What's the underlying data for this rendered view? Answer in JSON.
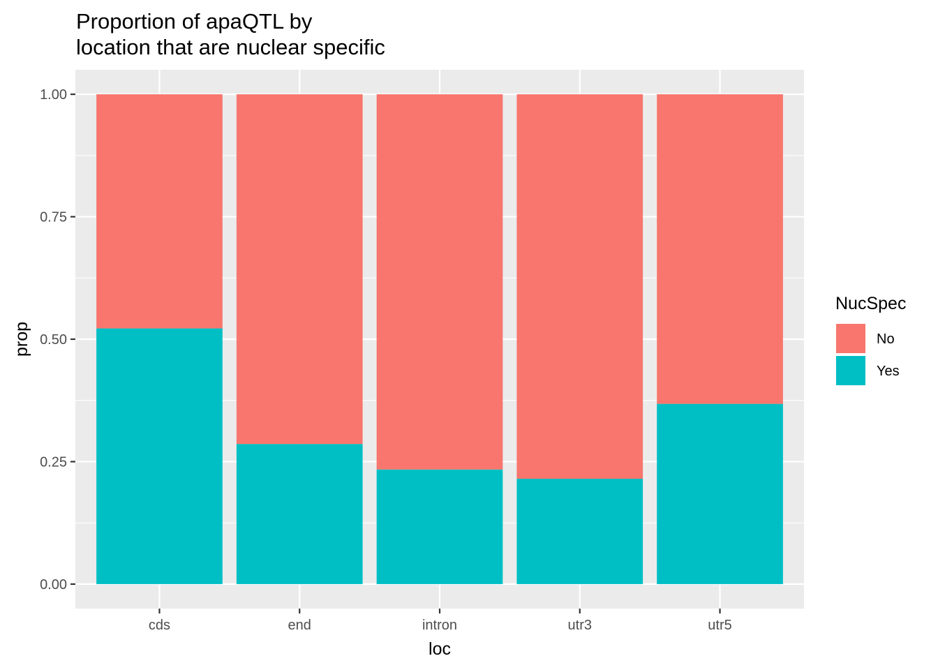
{
  "chart_data": {
    "type": "bar",
    "stacked": true,
    "title_lines": [
      "Proportion of apaQTL by",
      "location that are nuclear specific"
    ],
    "xlabel": "loc",
    "ylabel": "prop",
    "categories": [
      "cds",
      "end",
      "intron",
      "utr3",
      "utr5"
    ],
    "series": [
      {
        "name": "No",
        "color": "#F8766D",
        "values": [
          0.478,
          0.714,
          0.766,
          0.785,
          0.632
        ]
      },
      {
        "name": "Yes",
        "color": "#00BFC4",
        "values": [
          0.522,
          0.286,
          0.234,
          0.215,
          0.368
        ]
      }
    ],
    "stack_order_bottom_to_top": [
      "Yes",
      "No"
    ],
    "ylim": [
      -0.05,
      1.05
    ],
    "yticks": [
      0.0,
      0.25,
      0.5,
      0.75,
      1.0
    ],
    "ytick_labels": [
      "0.00",
      "0.25",
      "0.50",
      "0.75",
      "1.00"
    ],
    "grid": true,
    "panel_background": "#EBEBEB",
    "grid_color": "#FFFFFF",
    "legend": {
      "title": "NucSpec",
      "position": "right",
      "entries": [
        {
          "label": "No",
          "color": "#F8766D"
        },
        {
          "label": "Yes",
          "color": "#00BFC4"
        }
      ]
    }
  }
}
